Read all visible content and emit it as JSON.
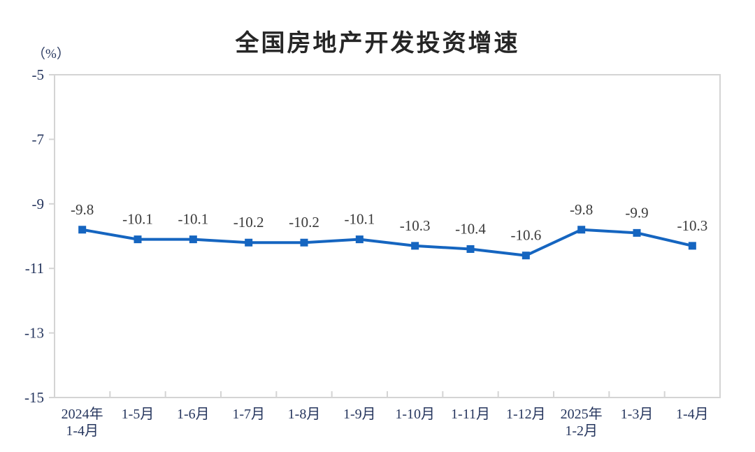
{
  "chart": {
    "title": "全国房地产开发投资增速",
    "unit_label": "（%）"
  },
  "chart_data": {
    "type": "line",
    "title": "全国房地产开发投资增速",
    "unit": "（%）",
    "categories": [
      [
        "2024年",
        "1-4月"
      ],
      [
        "1-5月"
      ],
      [
        "1-6月"
      ],
      [
        "1-7月"
      ],
      [
        "1-8月"
      ],
      [
        "1-9月"
      ],
      [
        "1-10月"
      ],
      [
        "1-11月"
      ],
      [
        "1-12月"
      ],
      [
        "2025年",
        "1-2月"
      ],
      [
        "1-3月"
      ],
      [
        "1-4月"
      ]
    ],
    "values": [
      -9.8,
      -10.1,
      -10.1,
      -10.2,
      -10.2,
      -10.1,
      -10.3,
      -10.4,
      -10.6,
      -9.8,
      -9.9,
      -10.3
    ],
    "data_labels": [
      "-9.8",
      "-10.1",
      "-10.1",
      "-10.2",
      "-10.2",
      "-10.1",
      "-10.3",
      "-10.4",
      "-10.6",
      "-9.8",
      "-9.9",
      "-10.3"
    ],
    "ylim": [
      -15,
      -5
    ],
    "yticks": [
      -5,
      -7,
      -9,
      -11,
      -13,
      -15
    ],
    "grid": false,
    "legend_position": "none",
    "marker": "square",
    "line_color": "#1565C0",
    "axis_line_color": "#D4D4D4",
    "axis_label_color": "#26365E",
    "data_label_color": "#3A3A3A"
  }
}
